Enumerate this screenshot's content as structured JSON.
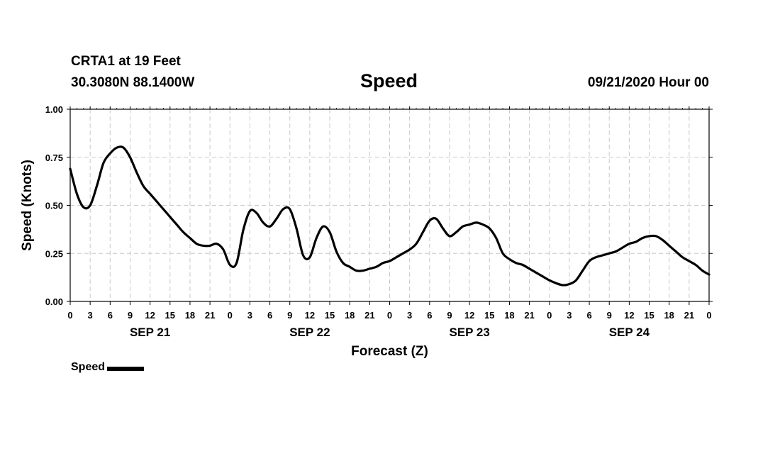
{
  "header": {
    "station": "CRTA1 at 19 Feet",
    "coords": "30.3080N 88.1400W",
    "title": "Speed",
    "datetime": "09/21/2020 Hour 00"
  },
  "chart_data": {
    "type": "line",
    "title": "Speed",
    "xlabel": "Forecast (Z)",
    "ylabel": "Speed (Knots)",
    "ylim": [
      0,
      1
    ],
    "xlim": [
      0,
      96
    ],
    "y_ticks": [
      "0.00",
      "0.25",
      "0.50",
      "0.75",
      "1.00"
    ],
    "y_tick_values": [
      0,
      0.25,
      0.5,
      0.75,
      1.0
    ],
    "x_tick_labels": [
      "0",
      "3",
      "6",
      "9",
      "12",
      "15",
      "18",
      "21",
      "0",
      "3",
      "6",
      "9",
      "12",
      "15",
      "18",
      "21",
      "0",
      "3",
      "6",
      "9",
      "12",
      "15",
      "18",
      "21",
      "0",
      "3",
      "6",
      "9",
      "12",
      "15",
      "18",
      "21",
      "0"
    ],
    "day_labels": [
      "SEP 21",
      "SEP 22",
      "SEP 23",
      "SEP 24"
    ],
    "grid": true,
    "x_unit": "forecast hours from 09/21/2020 00Z",
    "series": [
      {
        "name": "Speed",
        "color": "#000000",
        "x": [
          0,
          1,
          2,
          3,
          4,
          5,
          6,
          7,
          8,
          9,
          10,
          11,
          12,
          13,
          14,
          15,
          16,
          17,
          18,
          19,
          20,
          21,
          22,
          23,
          24,
          25,
          26,
          27,
          28,
          29,
          30,
          31,
          32,
          33,
          34,
          35,
          36,
          37,
          38,
          39,
          40,
          41,
          42,
          43,
          44,
          45,
          46,
          47,
          48,
          49,
          50,
          51,
          52,
          53,
          54,
          55,
          56,
          57,
          58,
          59,
          60,
          61,
          62,
          63,
          64,
          65,
          66,
          67,
          68,
          69,
          70,
          71,
          72,
          73,
          74,
          75,
          76,
          77,
          78,
          79,
          80,
          81,
          82,
          83,
          84,
          85,
          86,
          87,
          88,
          89,
          90,
          91,
          92,
          93,
          94,
          95,
          96
        ],
        "values": [
          0.69,
          0.56,
          0.49,
          0.5,
          0.6,
          0.72,
          0.77,
          0.8,
          0.8,
          0.75,
          0.67,
          0.6,
          0.56,
          0.52,
          0.48,
          0.44,
          0.4,
          0.36,
          0.33,
          0.3,
          0.29,
          0.29,
          0.3,
          0.27,
          0.19,
          0.2,
          0.37,
          0.47,
          0.46,
          0.41,
          0.39,
          0.43,
          0.48,
          0.48,
          0.38,
          0.24,
          0.23,
          0.33,
          0.39,
          0.36,
          0.26,
          0.2,
          0.18,
          0.16,
          0.16,
          0.17,
          0.18,
          0.2,
          0.21,
          0.23,
          0.25,
          0.27,
          0.3,
          0.36,
          0.42,
          0.43,
          0.38,
          0.34,
          0.36,
          0.39,
          0.4,
          0.41,
          0.4,
          0.38,
          0.33,
          0.25,
          0.22,
          0.2,
          0.19,
          0.17,
          0.15,
          0.13,
          0.11,
          0.095,
          0.085,
          0.09,
          0.11,
          0.16,
          0.21,
          0.23,
          0.24,
          0.25,
          0.26,
          0.28,
          0.3,
          0.31,
          0.33,
          0.34,
          0.34,
          0.32,
          0.29,
          0.26,
          0.23,
          0.21,
          0.19,
          0.16,
          0.14
        ]
      }
    ]
  },
  "legend": {
    "label": "Speed",
    "color": "#000000"
  }
}
